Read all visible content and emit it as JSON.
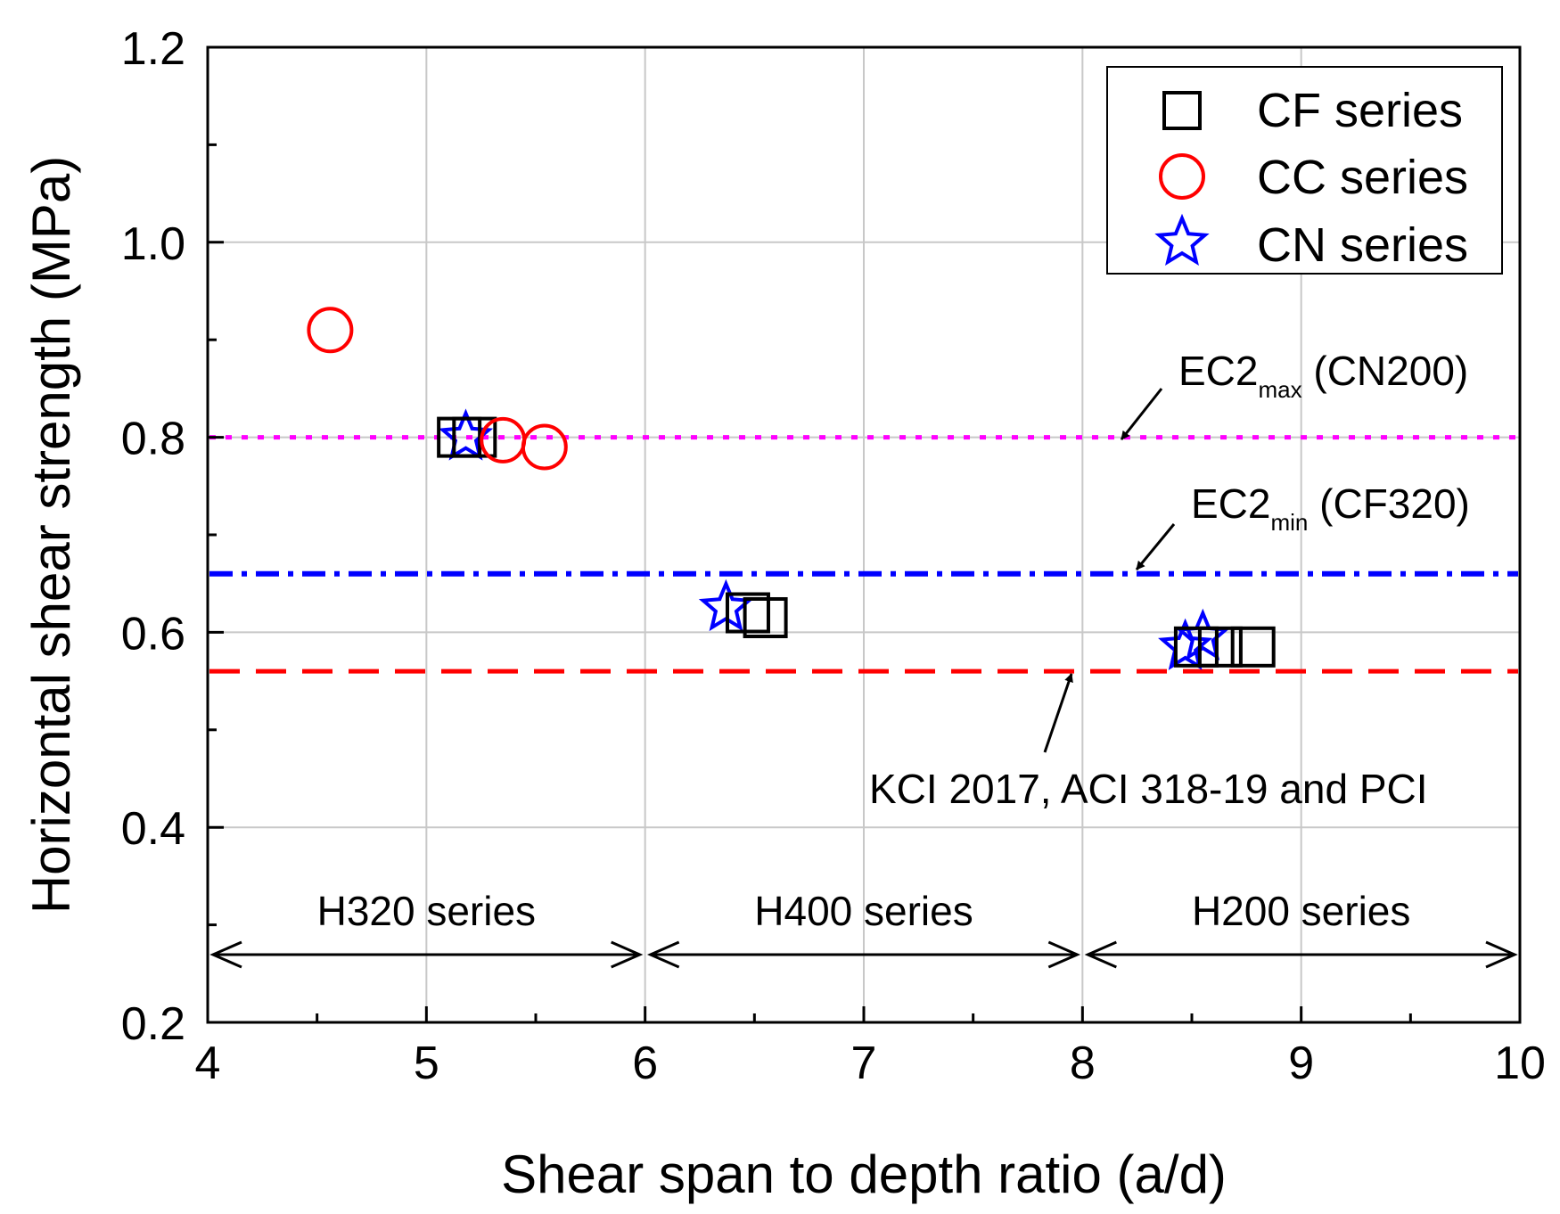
{
  "chart_data": {
    "type": "scatter",
    "title": "",
    "xlabel": "Shear span to depth ratio (a/d)",
    "ylabel": "Horizontal shear strength (MPa)",
    "xlim": [
      4,
      10
    ],
    "ylim": [
      0.2,
      1.2
    ],
    "x_ticks": [
      "4",
      "5",
      "6",
      "7",
      "8",
      "9",
      "10"
    ],
    "y_ticks": [
      "0.2",
      "0.4",
      "0.6",
      "0.8",
      "1.0",
      "1.2"
    ],
    "grid": true,
    "legend_position": "top-right",
    "series": [
      {
        "name": "CF series",
        "marker": "square",
        "color": "#000000",
        "points": [
          {
            "x": 5.15,
            "y": 0.8
          },
          {
            "x": 5.22,
            "y": 0.8
          },
          {
            "x": 6.47,
            "y": 0.62
          },
          {
            "x": 6.55,
            "y": 0.615
          },
          {
            "x": 8.52,
            "y": 0.585
          },
          {
            "x": 8.63,
            "y": 0.585
          },
          {
            "x": 8.78,
            "y": 0.585
          }
        ]
      },
      {
        "name": "CC series",
        "marker": "circle",
        "color": "#ff0000",
        "points": [
          {
            "x": 4.56,
            "y": 0.91
          },
          {
            "x": 5.35,
            "y": 0.797
          },
          {
            "x": 5.54,
            "y": 0.79
          }
        ]
      },
      {
        "name": "CN series",
        "marker": "star",
        "color": "#0000ff",
        "points": [
          {
            "x": 5.18,
            "y": 0.8
          },
          {
            "x": 6.37,
            "y": 0.625
          },
          {
            "x": 8.47,
            "y": 0.585
          },
          {
            "x": 8.55,
            "y": 0.595
          }
        ]
      }
    ],
    "reference_lines": [
      {
        "label": "EC2max (CN200)",
        "y": 0.8,
        "color": "#ff00ff",
        "style": "dotted"
      },
      {
        "label": "EC2min (CF320)",
        "y": 0.66,
        "color": "#0000ff",
        "style": "dash-dot"
      },
      {
        "label": "KCI 2017, ACI 318-19 and PCI",
        "y": 0.56,
        "color": "#ff0000",
        "style": "dashed"
      }
    ],
    "annotations": {
      "ec2max": {
        "main": "EC2",
        "sub": "max",
        "rest": " (CN200)"
      },
      "ec2min": {
        "main": "EC2",
        "sub": "min",
        "rest": " (CF320)"
      },
      "kci": "KCI 2017, ACI 318-19 and PCI"
    },
    "ranges": [
      {
        "label": "H320 series",
        "from": 4,
        "to": 6
      },
      {
        "label": "H400 series",
        "from": 6,
        "to": 8
      },
      {
        "label": "H200 series",
        "from": 8,
        "to": 10
      }
    ]
  }
}
